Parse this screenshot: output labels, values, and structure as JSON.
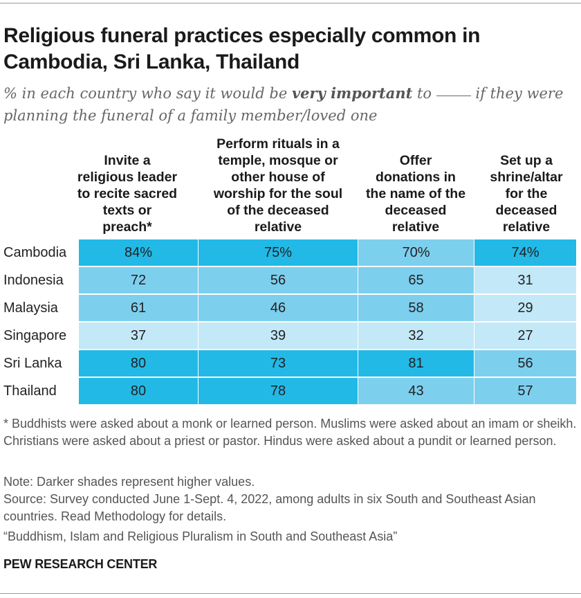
{
  "title": "Religious funeral practices especially common in Cambodia, Sri Lanka, Thailand",
  "subtitle": {
    "part1": "% in each country who say it would be ",
    "emphasis": "very important",
    "part2": " to ",
    "part3": " if they were planning the funeral of a family member/loved one"
  },
  "colors": {
    "very_high": "#22b9e6",
    "high": "#7dcfee",
    "low": "#c3e8f8"
  },
  "chart_data": {
    "type": "table",
    "columns": [
      "Invite a religious leader to recite sacred texts or preach*",
      "Perform rituals in a temple, mosque or other house of worship for the soul of the deceased relative",
      "Offer donations in the name of the deceased relative",
      "Set up a shrine/altar for the deceased relative"
    ],
    "rows": [
      {
        "country": "Cambodia",
        "values": [
          84,
          75,
          70,
          74
        ],
        "display": [
          "84%",
          "75%",
          "70%",
          "74%"
        ]
      },
      {
        "country": "Indonesia",
        "values": [
          72,
          56,
          65,
          31
        ],
        "display": [
          "72",
          "56",
          "65",
          "31"
        ]
      },
      {
        "country": "Malaysia",
        "values": [
          61,
          46,
          58,
          29
        ],
        "display": [
          "61",
          "46",
          "58",
          "29"
        ]
      },
      {
        "country": "Singapore",
        "values": [
          37,
          39,
          32,
          27
        ],
        "display": [
          "37",
          "39",
          "32",
          "27"
        ]
      },
      {
        "country": "Sri Lanka",
        "values": [
          80,
          73,
          81,
          56
        ],
        "display": [
          "80",
          "73",
          "81",
          "56"
        ]
      },
      {
        "country": "Thailand",
        "values": [
          80,
          78,
          43,
          57
        ],
        "display": [
          "80",
          "78",
          "43",
          "57"
        ]
      }
    ],
    "unit": "%",
    "shading_note": "Darker shades represent higher values."
  },
  "footnotes": {
    "asterisk": "* Buddhists were asked about a monk or learned person. Muslims were asked about an imam or sheikh. Christians were asked about a priest or pastor. Hindus were asked about a pundit or learned person.",
    "note": "Note: Darker shades represent higher values.",
    "source": "Source: Survey conducted June 1-Sept. 4, 2022, among adults in six South and Southeast Asian countries. Read Methodology for details.",
    "report": "“Buddhism, Islam and Religious Pluralism in South and Southeast Asia”"
  },
  "brand": "PEW RESEARCH CENTER"
}
